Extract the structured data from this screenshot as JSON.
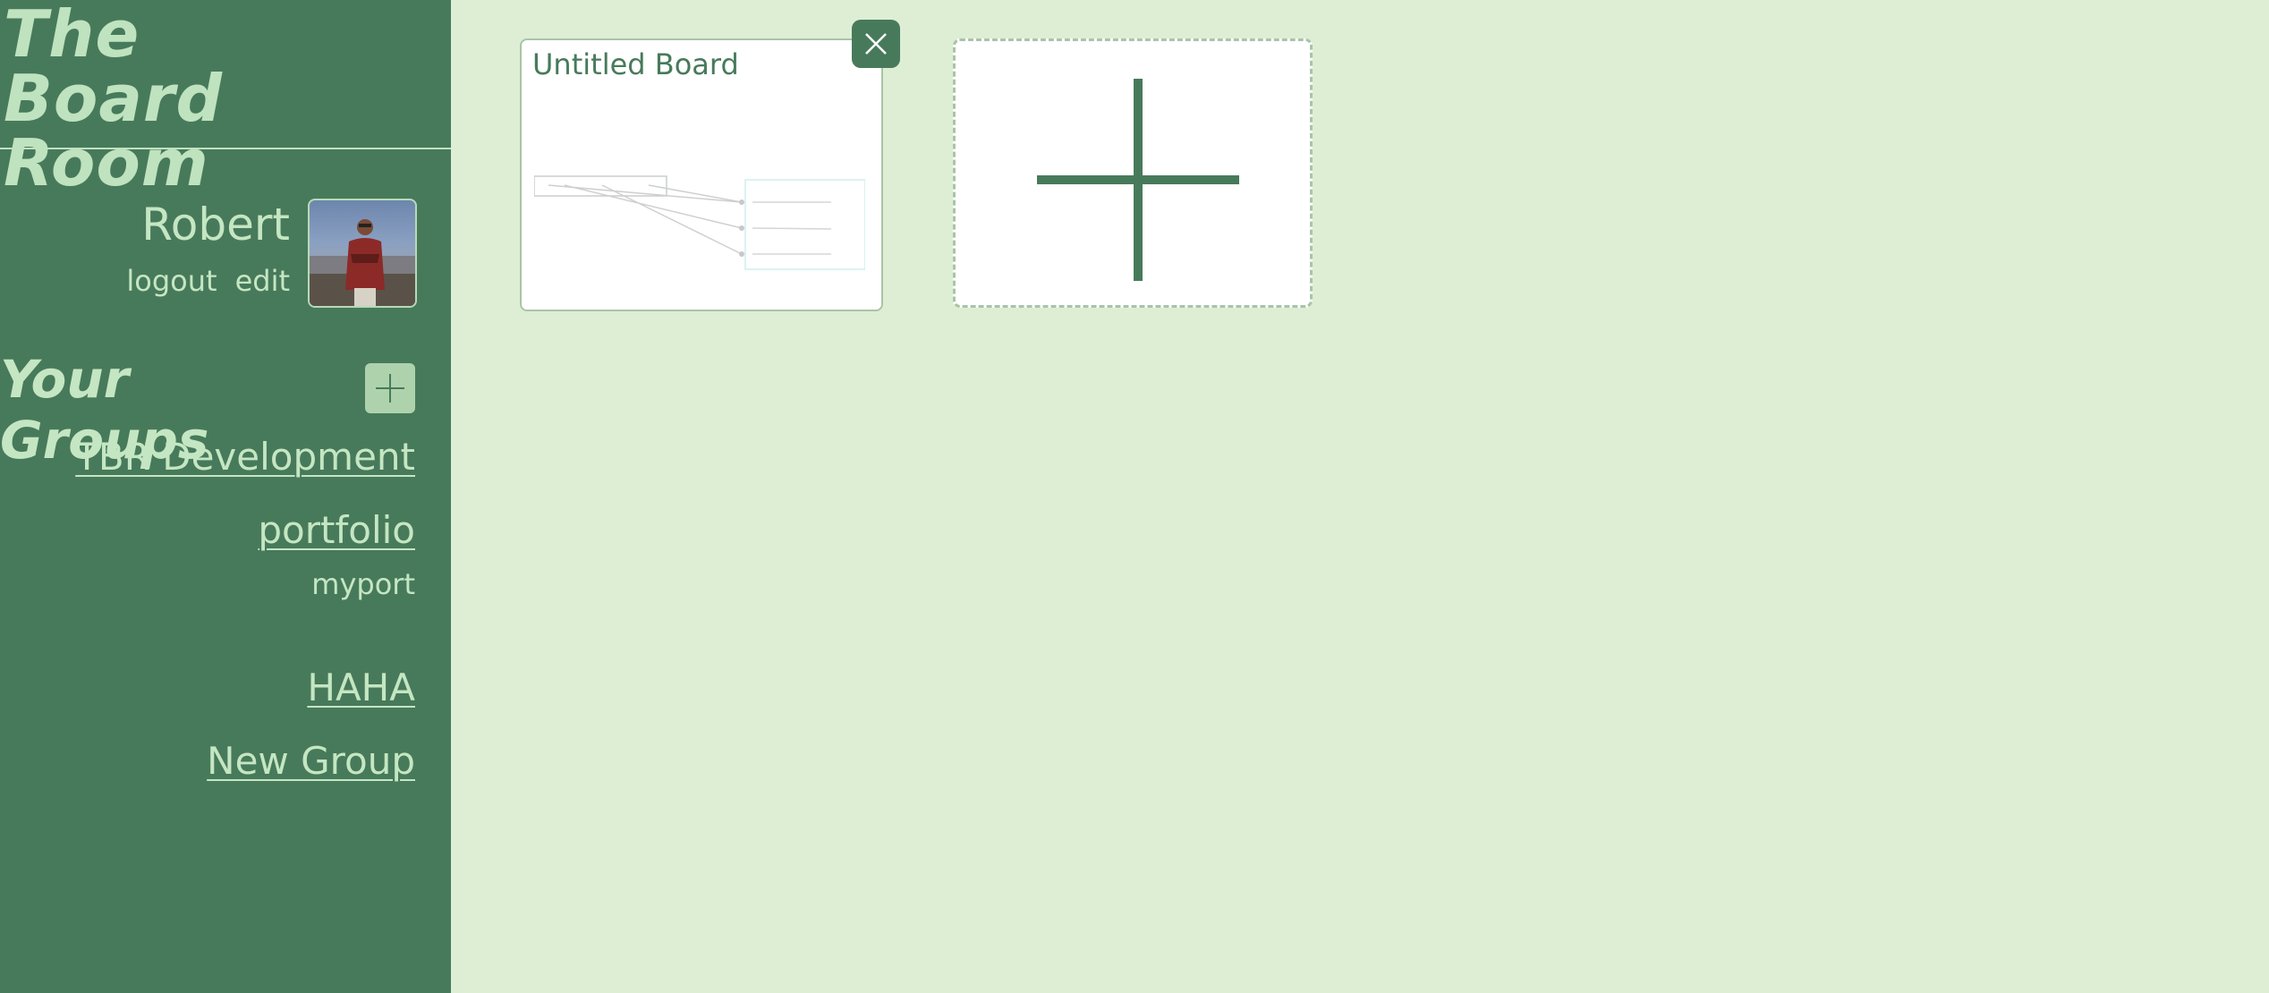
{
  "app": {
    "title_line1": "The Board",
    "title_line2": "Room"
  },
  "user": {
    "name": "Robert",
    "logout_label": "logout",
    "edit_label": "edit"
  },
  "groups": {
    "title": "Your Groups",
    "items": [
      {
        "name": "TBR Development"
      },
      {
        "name": "portfolio",
        "subitems": [
          "myport"
        ]
      },
      {
        "name": "HAHA"
      },
      {
        "name": "New Group"
      }
    ]
  },
  "boards": [
    {
      "title": "Untitled Board"
    }
  ],
  "colors": {
    "sidebar": "#477a5b",
    "background": "#ddeed4",
    "accent_text": "#c5e6c2",
    "card_border": "#a9c4a8"
  },
  "icons": [
    "close-icon",
    "plus-icon",
    "add-group-plus-icon"
  ]
}
